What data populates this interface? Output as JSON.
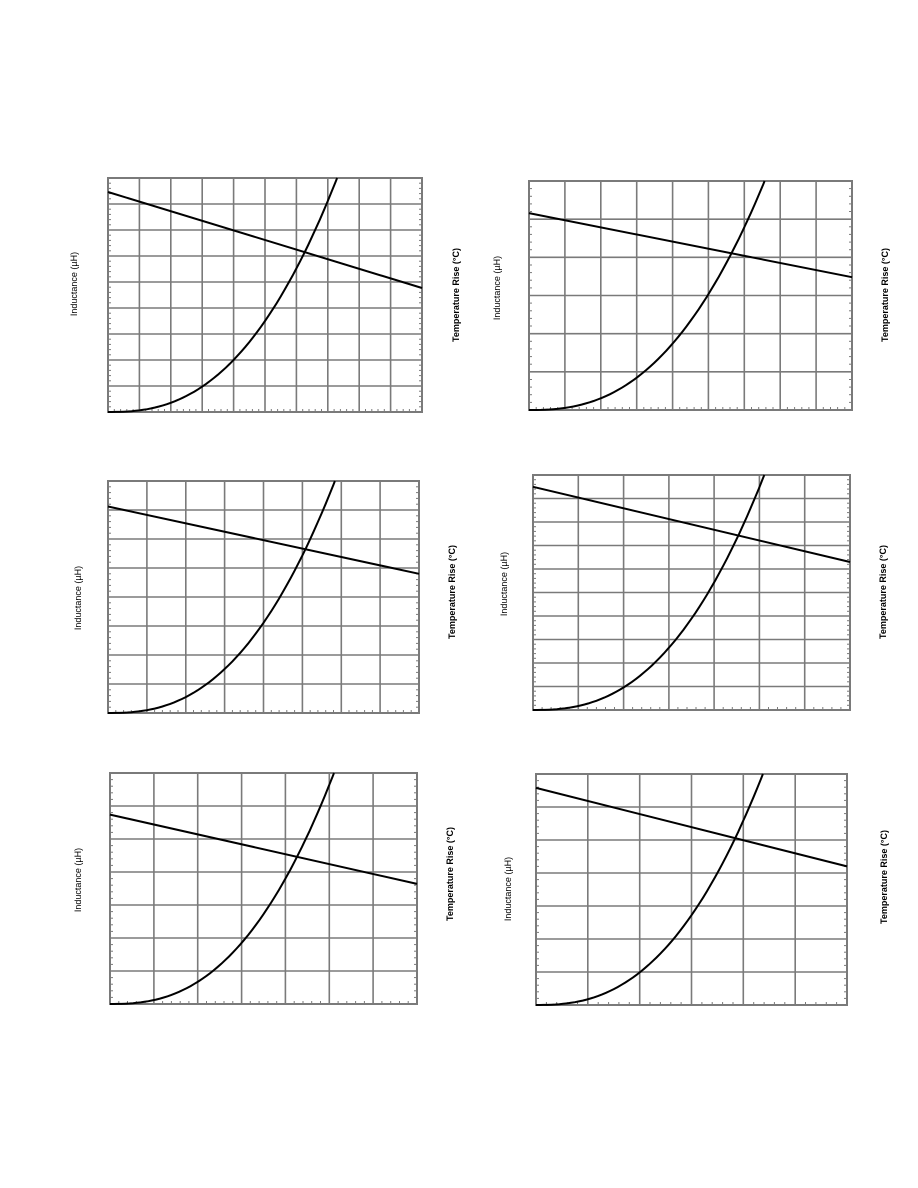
{
  "labels": {
    "inductance_axis": "Inductance (µH)",
    "temp_axis": "Temperature Rise (°C)"
  },
  "chart_data": [
    {
      "type": "line",
      "grid": "on",
      "vdiv": 10,
      "hdiv": 9,
      "inductance": [
        0.94,
        0.53
      ],
      "temp": [
        0,
        1.0
      ],
      "temp_exponent": 2.5
    },
    {
      "type": "line",
      "grid": "on",
      "vdiv": 9,
      "hdiv": 6,
      "inductance": [
        0.86,
        0.58
      ],
      "temp": [
        0,
        1.0
      ],
      "temp_exponent": 2.5
    },
    {
      "type": "line",
      "grid": "on",
      "vdiv": 8,
      "hdiv": 8,
      "inductance": [
        0.89,
        0.6
      ],
      "temp": [
        0,
        1.0
      ],
      "temp_exponent": 2.5
    },
    {
      "type": "line",
      "grid": "on",
      "vdiv": 7,
      "hdiv": 10,
      "inductance": [
        0.95,
        0.63
      ],
      "temp": [
        0,
        1.0
      ],
      "temp_exponent": 2.5
    },
    {
      "type": "line",
      "grid": "on",
      "vdiv": 7,
      "hdiv": 7,
      "inductance": [
        0.82,
        0.52
      ],
      "temp": [
        0,
        1.0
      ],
      "temp_exponent": 2.5
    },
    {
      "type": "line",
      "grid": "on",
      "vdiv": 6,
      "hdiv": 7,
      "inductance": [
        0.94,
        0.6
      ],
      "temp": [
        0,
        1.0
      ],
      "temp_exponent": 2.5
    }
  ]
}
